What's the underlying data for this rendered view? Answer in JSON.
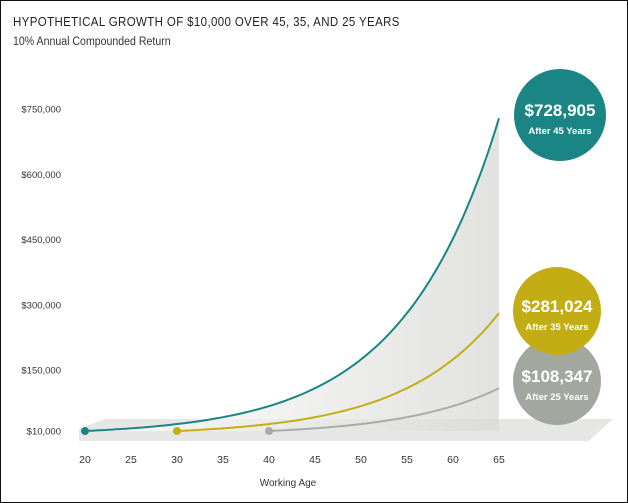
{
  "chart_data": {
    "type": "line",
    "title": "HYPOTHETICAL GROWTH OF $10,000 OVER 45, 35, AND 25 YEARS",
    "subtitle": "10% Annual Compounded Return",
    "xlabel": "Working Age",
    "ylabel": "",
    "x_ticks": [
      20,
      25,
      30,
      35,
      40,
      45,
      50,
      55,
      60,
      65
    ],
    "y_ticks": [
      10000,
      150000,
      300000,
      450000,
      600000,
      750000
    ],
    "y_tick_labels": [
      "$10,000",
      "$150,000",
      "$300,000",
      "$450,000",
      "$600,000",
      "$750,000"
    ],
    "xlim": [
      20,
      65
    ],
    "grid": false,
    "legend": "bubbles at right end of lines",
    "series": [
      {
        "label": "After 45 Years",
        "start_age": 20,
        "end_age": 65,
        "initial": 10000,
        "rate": 0.1,
        "final_value": 728905,
        "final_label": "$728,905",
        "color": "#1a8584",
        "bubble_color": "#1a8584"
      },
      {
        "label": "After 35 Years",
        "start_age": 30,
        "end_age": 65,
        "initial": 10000,
        "rate": 0.1,
        "final_value": 281024,
        "final_label": "$281,024",
        "color": "#c2ae14",
        "bubble_color": "#c2ae14"
      },
      {
        "label": "After 25 Years",
        "start_age": 40,
        "end_age": 65,
        "initial": 10000,
        "rate": 0.1,
        "final_value": 108347,
        "final_label": "$108,347",
        "color": "#a7aca6",
        "bubble_color": "#9da39b"
      }
    ]
  }
}
